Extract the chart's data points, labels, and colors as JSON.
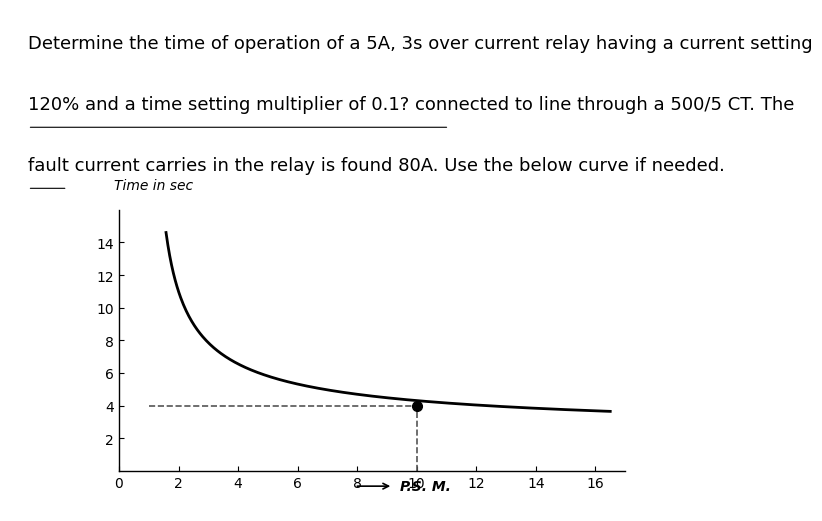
{
  "title_text": "Determine the time of operation of a 5A, 3s over current relay having a current setting\n120% and a time setting multiplier of 0.1? connected to line through a 500/5 CT. The\nfault current carries in the relay is found 80A. Use the below curve if needed.",
  "underline_segments": [
    [
      0,
      1,
      "120% and a time setting multiplier of 0.1? connected"
    ],
    [
      0,
      2,
      "fault"
    ]
  ],
  "ylabel": "Time in sec",
  "xlabel": "P.S. M.",
  "xlim": [
    0,
    17
  ],
  "ylim": [
    0,
    16
  ],
  "xticks": [
    0,
    2,
    4,
    6,
    8,
    10,
    12,
    14,
    16
  ],
  "yticks": [
    2,
    4,
    6,
    8,
    10,
    12,
    14
  ],
  "curve_color": "#000000",
  "dashed_color": "#555555",
  "dot_color": "#000000",
  "dot_x": 10,
  "dot_y": 4,
  "background_color": "#ffffff",
  "text_color": "#000000",
  "font_size_title": 13,
  "font_size_axis": 11
}
